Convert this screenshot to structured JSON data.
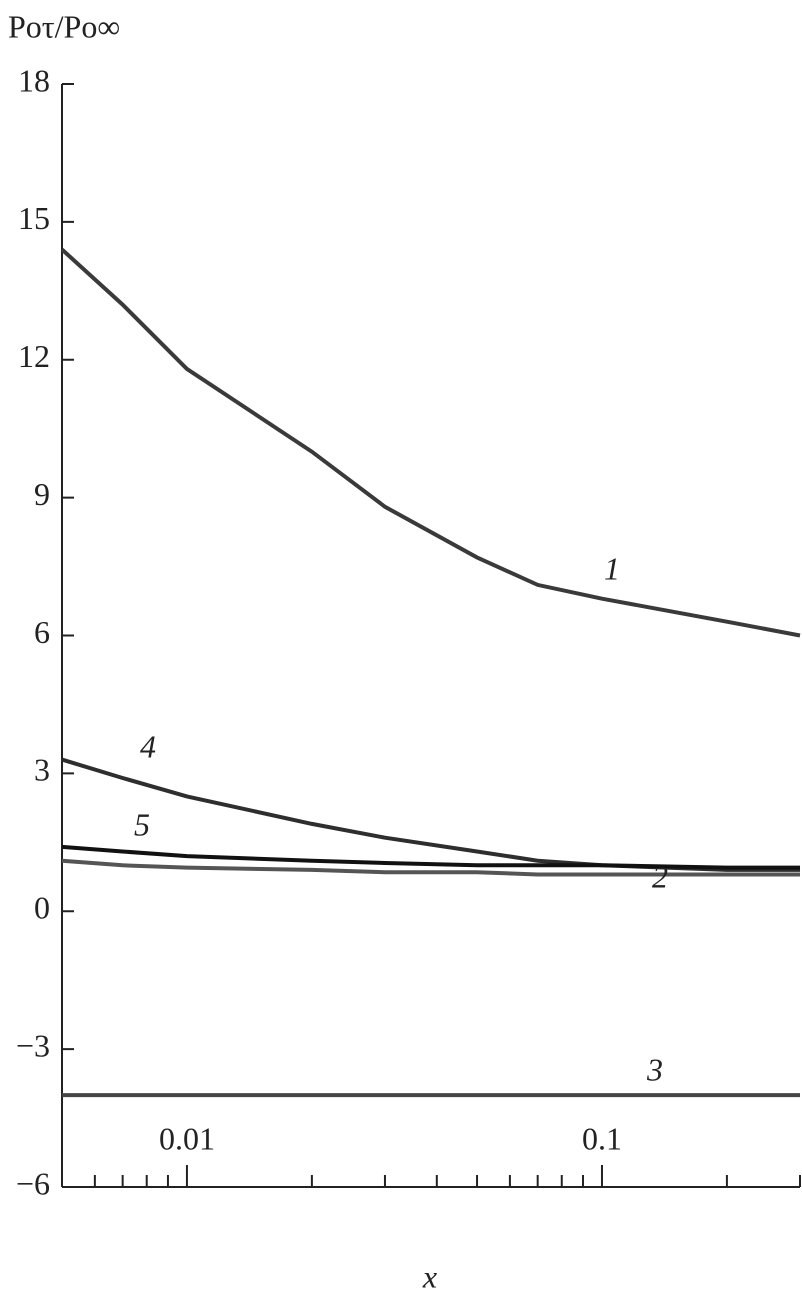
{
  "chart_data": {
    "type": "line",
    "ylabel": "Poτ/Po∞",
    "xlabel": "x",
    "xscale": "log",
    "xlim": [
      0.005,
      0.3
    ],
    "xticks": [
      0.01,
      0.1
    ],
    "xminorticks": [
      0.006,
      0.007,
      0.008,
      0.009,
      0.02,
      0.03,
      0.04,
      0.05,
      0.06,
      0.07,
      0.08,
      0.09,
      0.2,
      0.3
    ],
    "ylim": [
      -6,
      18
    ],
    "yticks": [
      {
        "value": -6,
        "label": "−6"
      },
      {
        "value": -3,
        "label": "−3"
      },
      0,
      3,
      6,
      9,
      12,
      15,
      18
    ],
    "x": [
      0.005,
      0.007,
      0.01,
      0.02,
      0.03,
      0.05,
      0.07,
      0.1,
      0.2,
      0.3
    ],
    "series": [
      {
        "name": "1",
        "color": "#3a3a3a",
        "values": [
          14.4,
          13.2,
          11.8,
          10.0,
          8.8,
          7.7,
          7.1,
          6.8,
          6.3,
          6.0
        ]
      },
      {
        "name": "2",
        "color": "#555555",
        "values": [
          1.1,
          1.0,
          0.95,
          0.9,
          0.85,
          0.85,
          0.8,
          0.8,
          0.8,
          0.8
        ]
      },
      {
        "name": "3",
        "color": "#444444",
        "values": [
          -4,
          -4,
          -4,
          -4,
          -4,
          -4,
          -4,
          -4,
          -4,
          -4
        ]
      },
      {
        "name": "4",
        "color": "#2e2e2e",
        "values": [
          3.3,
          2.9,
          2.5,
          1.9,
          1.6,
          1.3,
          1.1,
          1.0,
          0.9,
          0.9
        ]
      },
      {
        "name": "5",
        "color": "#111111",
        "values": [
          1.4,
          1.3,
          1.2,
          1.1,
          1.05,
          1.0,
          1.0,
          1.0,
          0.95,
          0.95
        ]
      }
    ]
  }
}
